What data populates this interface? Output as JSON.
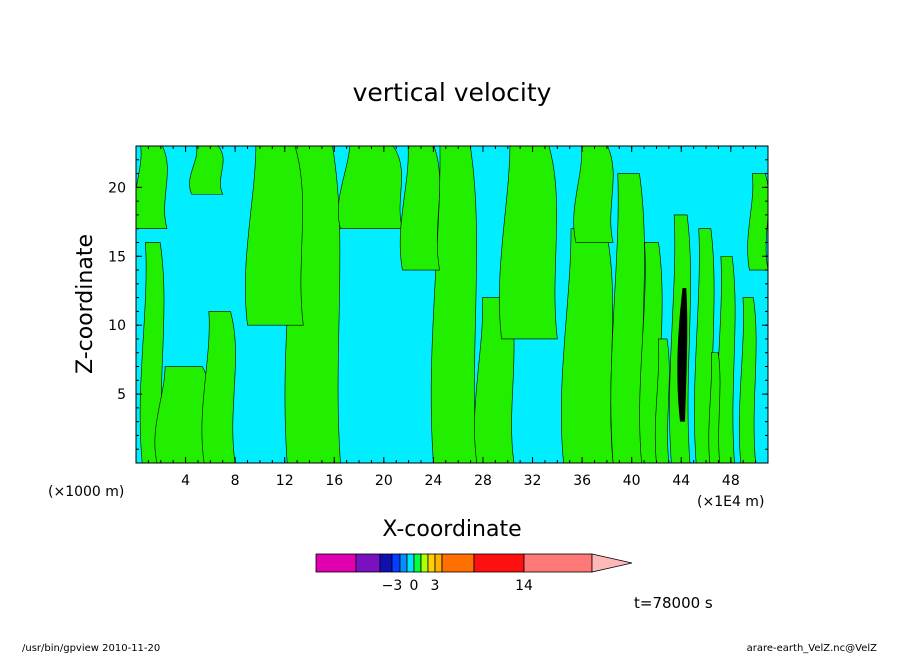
{
  "chart_data": {
    "type": "heatmap",
    "title": "vertical velocity",
    "xlabel": "X-coordinate",
    "ylabel": "Z-coordinate",
    "x_unit_left": "(×1000 m)",
    "x_unit_right": "(×1E4 m)",
    "xlim": [
      0,
      51
    ],
    "ylim": [
      0,
      23
    ],
    "xticks": [
      "4",
      "8",
      "12",
      "16",
      "20",
      "24",
      "28",
      "32",
      "36",
      "40",
      "44",
      "48"
    ],
    "yticks": [
      "5",
      "10",
      "15",
      "20"
    ],
    "colorbar": {
      "tick_labels": [
        {
          "label": "-3",
          "value": -3
        },
        {
          "label": "0",
          "value": 0
        },
        {
          "label": "3",
          "value": 3
        },
        {
          "label": "14",
          "value": 14
        }
      ]
    },
    "time_label": "t=78000 s"
  },
  "footer": {
    "left": "/usr/bin/gpview   2010-11-20",
    "right": "arare-earth_VelZ.nc@VelZ"
  },
  "colors": {
    "negative": "#00eeff",
    "positive": "#22ee00",
    "strong": "#000000",
    "colorbar": [
      "#e000b0",
      "#7a10c0",
      "#1010b0",
      "#0040ff",
      "#0090ff",
      "#00e0ff",
      "#00ff40",
      "#b0ff00",
      "#ffd000",
      "#ffb000",
      "#ff7000",
      "#ff1010",
      "#ff7878",
      "#ffb8b8"
    ]
  }
}
